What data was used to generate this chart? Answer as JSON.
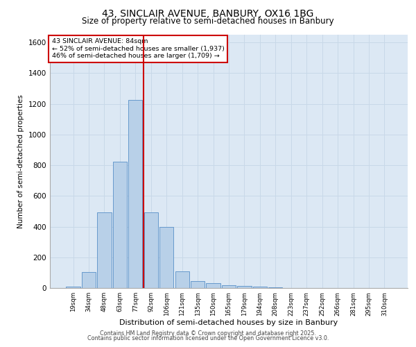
{
  "title_line1": "43, SINCLAIR AVENUE, BANBURY, OX16 1BG",
  "title_line2": "Size of property relative to semi-detached houses in Banbury",
  "xlabel": "Distribution of semi-detached houses by size in Banbury",
  "ylabel": "Number of semi-detached properties",
  "bar_labels": [
    "19sqm",
    "34sqm",
    "48sqm",
    "63sqm",
    "77sqm",
    "92sqm",
    "106sqm",
    "121sqm",
    "135sqm",
    "150sqm",
    "165sqm",
    "179sqm",
    "194sqm",
    "208sqm",
    "223sqm",
    "237sqm",
    "252sqm",
    "266sqm",
    "281sqm",
    "295sqm",
    "310sqm"
  ],
  "bar_values": [
    10,
    105,
    495,
    825,
    1225,
    495,
    400,
    110,
    47,
    30,
    20,
    12,
    8,
    5,
    0,
    0,
    0,
    0,
    0,
    0,
    0
  ],
  "bar_color": "#b8d0e8",
  "bar_edge_color": "#6699cc",
  "vline_color": "#cc0000",
  "annotation_title": "43 SINCLAIR AVENUE: 84sqm",
  "annotation_line1": "← 52% of semi-detached houses are smaller (1,937)",
  "annotation_line2": "46% of semi-detached houses are larger (1,709) →",
  "annotation_box_color": "#ffffff",
  "annotation_box_edge": "#cc0000",
  "ylim": [
    0,
    1650
  ],
  "yticks": [
    0,
    200,
    400,
    600,
    800,
    1000,
    1200,
    1400,
    1600
  ],
  "grid_color": "#c8d8e8",
  "background_color": "#dce8f4",
  "footer_line1": "Contains HM Land Registry data © Crown copyright and database right 2025.",
  "footer_line2": "Contains public sector information licensed under the Open Government Licence v3.0."
}
